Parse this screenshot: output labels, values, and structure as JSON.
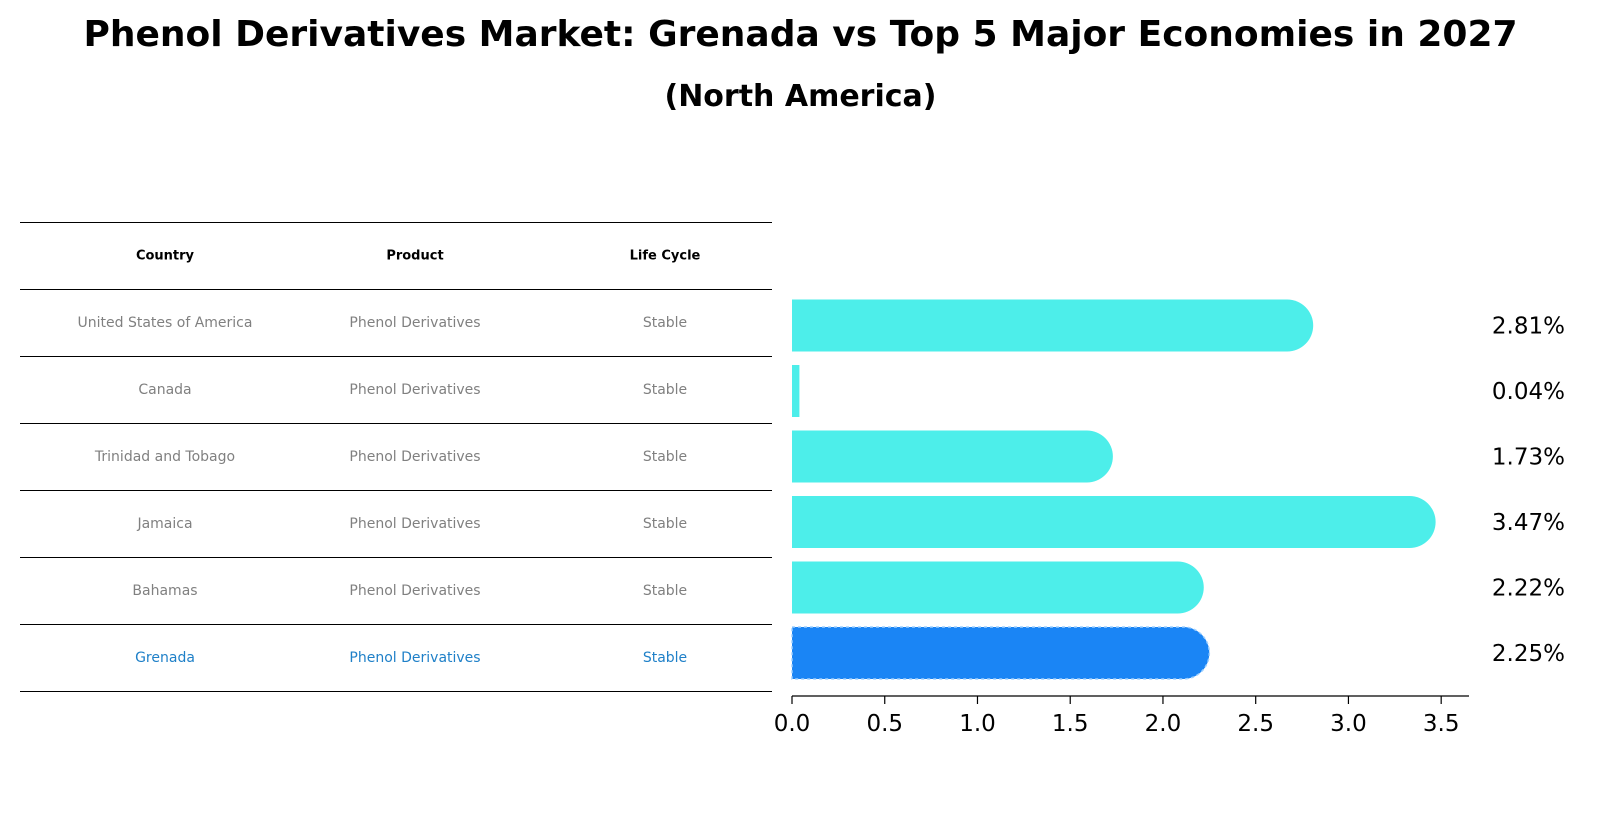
{
  "title": "Phenol Derivatives Market: Grenada vs Top 5 Major Economies in 2027",
  "subtitle": "(North America)",
  "table": {
    "headers": [
      "Country",
      "Product",
      "Life Cycle"
    ],
    "rows": [
      [
        "United States of America",
        "Phenol Derivatives",
        "Stable"
      ],
      [
        "Canada",
        "Phenol Derivatives",
        "Stable"
      ],
      [
        "Trinidad and Tobago",
        "Phenol Derivatives",
        "Stable"
      ],
      [
        "Jamaica",
        "Phenol Derivatives",
        "Stable"
      ],
      [
        "Bahamas",
        "Phenol Derivatives",
        "Stable"
      ],
      [
        "Grenada",
        "Phenol Derivatives",
        "Stable"
      ]
    ],
    "highlight_row": 5,
    "highlight_color": "#1f80c8"
  },
  "chart_data": {
    "type": "bar",
    "orientation": "horizontal",
    "categories": [
      "United States of America",
      "Canada",
      "Trinidad and Tobago",
      "Jamaica",
      "Bahamas",
      "Grenada"
    ],
    "values": [
      2.81,
      0.04,
      1.73,
      3.47,
      2.22,
      2.25
    ],
    "value_labels": [
      "2.81%",
      "0.04%",
      "1.73%",
      "3.47%",
      "2.22%",
      "2.25%"
    ],
    "xlim": [
      0,
      3.65
    ],
    "xticks": [
      "0.0",
      "0.5",
      "1.0",
      "1.5",
      "2.0",
      "2.5",
      "3.0",
      "3.5"
    ],
    "xlabel": "",
    "ylabel": "",
    "grid": false,
    "bar_color": "#4DEEEA",
    "highlight_color": "#1A85F5",
    "highlight_index": 5
  }
}
